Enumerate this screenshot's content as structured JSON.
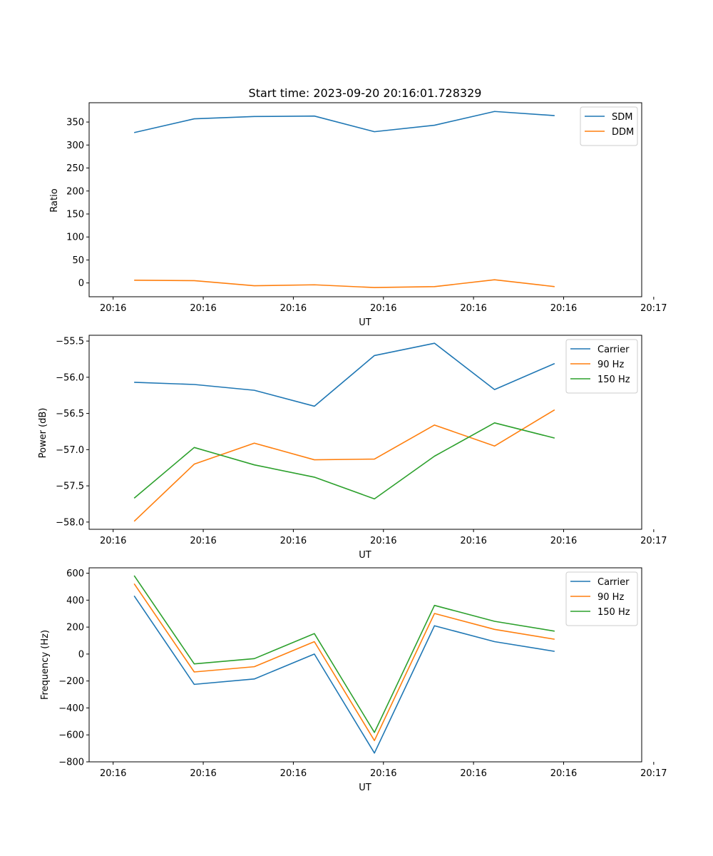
{
  "chart_data": [
    {
      "type": "line",
      "title": "Start time: 2023-09-20 20:16:01.728329",
      "xlabel": "UT",
      "ylabel": "Ratio",
      "xlim": [
        -0.4,
        8.8
      ],
      "ylim": [
        -30,
        392
      ],
      "x": [
        0.35,
        1.35,
        2.35,
        3.35,
        4.35,
        5.35,
        6.35,
        7.35
      ],
      "xticks": [
        0,
        1.5,
        3,
        4.5,
        6,
        7.5,
        9
      ],
      "xtick_labels": [
        "20:16",
        "20:16",
        "20:16",
        "20:16",
        "20:16",
        "20:16",
        "20:17"
      ],
      "yticks": [
        0,
        50,
        100,
        150,
        200,
        250,
        300,
        350
      ],
      "ytick_labels": [
        "0",
        "50",
        "100",
        "150",
        "200",
        "250",
        "300",
        "350"
      ],
      "legend": "top-right",
      "series": [
        {
          "name": "SDM",
          "color": "#1f77b4",
          "values": [
            327,
            357,
            362,
            363,
            329,
            343,
            373,
            364
          ]
        },
        {
          "name": "DDM",
          "color": "#ff7f0e",
          "values": [
            6,
            5,
            -6,
            -4,
            -10,
            -8,
            7,
            -8
          ]
        }
      ]
    },
    {
      "type": "line",
      "title": "",
      "xlabel": "UT",
      "ylabel": "Power (dB)",
      "xlim": [
        -0.4,
        8.8
      ],
      "ylim": [
        -58.1,
        -55.42
      ],
      "x": [
        0.35,
        1.35,
        2.35,
        3.35,
        4.35,
        5.35,
        6.35,
        7.35
      ],
      "xticks": [
        0,
        1.5,
        3,
        4.5,
        6,
        7.5,
        9
      ],
      "xtick_labels": [
        "20:16",
        "20:16",
        "20:16",
        "20:16",
        "20:16",
        "20:16",
        "20:17"
      ],
      "yticks": [
        -58.0,
        -57.5,
        -57.0,
        -56.5,
        -56.0,
        -55.5
      ],
      "ytick_labels": [
        "−58.0",
        "−57.5",
        "−57.0",
        "−56.5",
        "−56.0",
        "−55.5"
      ],
      "legend": "top-right",
      "series": [
        {
          "name": "Carrier",
          "color": "#1f77b4",
          "values": [
            -56.07,
            -56.1,
            -56.18,
            -56.4,
            -55.7,
            -55.53,
            -56.17,
            -55.81
          ]
        },
        {
          "name": "90 Hz",
          "color": "#ff7f0e",
          "values": [
            -57.99,
            -57.2,
            -56.91,
            -57.14,
            -57.13,
            -56.66,
            -56.95,
            -56.45
          ]
        },
        {
          "name": "150 Hz",
          "color": "#2ca02c",
          "values": [
            -57.67,
            -56.97,
            -57.21,
            -57.38,
            -57.68,
            -57.09,
            -56.63,
            -56.84
          ]
        }
      ]
    },
    {
      "type": "line",
      "title": "",
      "xlabel": "UT",
      "ylabel": "Frequency (Hz)",
      "xlim": [
        -0.4,
        8.8
      ],
      "ylim": [
        -800,
        640
      ],
      "x": [
        0.35,
        1.35,
        2.35,
        3.35,
        4.35,
        5.35,
        6.35,
        7.35
      ],
      "xticks": [
        0,
        1.5,
        3,
        4.5,
        6,
        7.5,
        9
      ],
      "xtick_labels": [
        "20:16",
        "20:16",
        "20:16",
        "20:16",
        "20:16",
        "20:16",
        "20:17"
      ],
      "yticks": [
        -800,
        -600,
        -400,
        -200,
        0,
        200,
        400,
        600
      ],
      "ytick_labels": [
        "−800",
        "−600",
        "−400",
        "−200",
        "0",
        "200",
        "400",
        "600"
      ],
      "legend": "top-right",
      "series": [
        {
          "name": "Carrier",
          "color": "#1f77b4",
          "values": [
            432,
            -225,
            -185,
            0,
            -735,
            210,
            92,
            20
          ]
        },
        {
          "name": "90 Hz",
          "color": "#ff7f0e",
          "values": [
            522,
            -133,
            -94,
            92,
            -642,
            301,
            183,
            110
          ]
        },
        {
          "name": "150 Hz",
          "color": "#2ca02c",
          "values": [
            582,
            -73,
            -34,
            152,
            -582,
            361,
            243,
            170
          ]
        }
      ]
    }
  ]
}
